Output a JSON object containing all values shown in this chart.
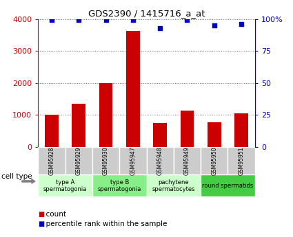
{
  "title": "GDS2390 / 1415716_a_at",
  "samples": [
    "GSM95928",
    "GSM95929",
    "GSM95930",
    "GSM95947",
    "GSM95948",
    "GSM95949",
    "GSM95950",
    "GSM95951"
  ],
  "counts": [
    1000,
    1350,
    2000,
    3620,
    750,
    1130,
    780,
    1050
  ],
  "percentile_ranks": [
    99,
    99,
    99,
    99,
    93,
    99,
    95,
    96
  ],
  "bar_color": "#cc0000",
  "dot_color": "#0000cc",
  "ylim_left": [
    0,
    4000
  ],
  "ylim_right": [
    0,
    100
  ],
  "yticks_left": [
    0,
    1000,
    2000,
    3000,
    4000
  ],
  "yticks_right": [
    0,
    25,
    50,
    75,
    100
  ],
  "cell_groups": [
    {
      "label": "type A\nspermatogonia",
      "color": "#ccffcc",
      "span": [
        0,
        2
      ]
    },
    {
      "label": "type B\nspermatogonia",
      "color": "#88ee88",
      "span": [
        2,
        4
      ]
    },
    {
      "label": "pachytene\nspermatocytes",
      "color": "#ccffcc",
      "span": [
        4,
        6
      ]
    },
    {
      "label": "round spermatids",
      "color": "#44cc44",
      "span": [
        6,
        8
      ]
    }
  ],
  "cell_type_label": "cell type",
  "legend_count_label": "count",
  "legend_percentile_label": "percentile rank within the sample",
  "sample_bg_color": "#cccccc",
  "grid_color": "#666666",
  "bar_width": 0.5,
  "bg_color": "#ffffff"
}
